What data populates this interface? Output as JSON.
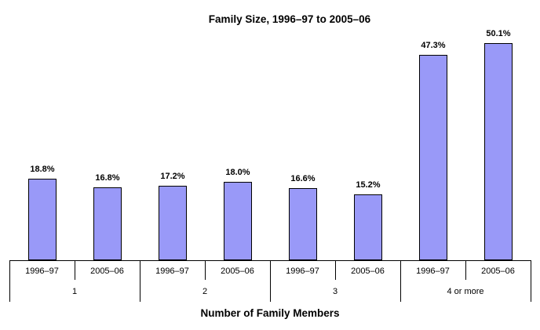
{
  "chart_data": {
    "type": "bar",
    "title": "Family Size, 1996–97 to 2005–06",
    "xlabel": "Number of Family Members",
    "ylabel": "",
    "unit": "%",
    "ylim": [
      0,
      60
    ],
    "grid": false,
    "legend": "none",
    "y_axis_visible": false,
    "bar_color": "#9999F8",
    "bar_border_color": "#000000",
    "axis_color": "#000000",
    "categories": [
      "1",
      "2",
      "3",
      "4 or more"
    ],
    "series": [
      {
        "name": "1996–97",
        "values": [
          18.8,
          17.2,
          16.6,
          47.3
        ],
        "labels": [
          "18.8%",
          "17.2%",
          "16.6%",
          "47.3%"
        ]
      },
      {
        "name": "2005–06",
        "values": [
          16.8,
          18.0,
          15.2,
          50.1
        ],
        "labels": [
          "16.8%",
          "18.0%",
          "15.2%",
          "50.1%"
        ]
      }
    ]
  }
}
